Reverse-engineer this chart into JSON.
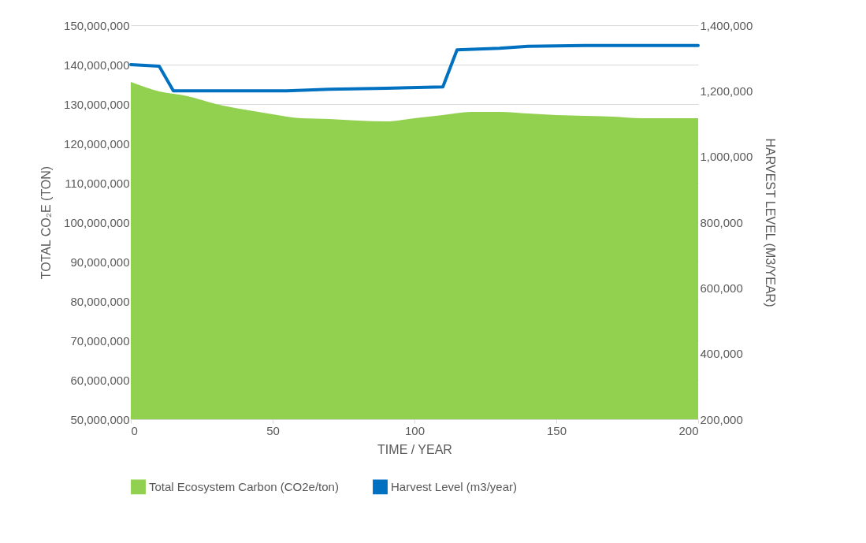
{
  "chart_data": {
    "type": "area",
    "xlabel": "TIME / YEAR",
    "ylabel": "TOTAL CO₂E (TON)",
    "y2label": "HARVEST LEVEL (M3/YEAR)",
    "xlim": [
      0,
      200
    ],
    "xticks": [
      0,
      50,
      100,
      150,
      200
    ],
    "ylim": [
      50000000,
      150000000
    ],
    "yticks": [
      {
        "value": 50000000,
        "label": "50,000,000"
      },
      {
        "value": 60000000,
        "label": "60,000,000"
      },
      {
        "value": 70000000,
        "label": "70,000,000"
      },
      {
        "value": 80000000,
        "label": "80,000,000"
      },
      {
        "value": 90000000,
        "label": "90,000,000"
      },
      {
        "value": 100000000,
        "label": "100,000,000"
      },
      {
        "value": 110000000,
        "label": "110,000,000"
      },
      {
        "value": 120000000,
        "label": "120,000,000"
      },
      {
        "value": 130000000,
        "label": "130,000,000"
      },
      {
        "value": 140000000,
        "label": "140,000,000"
      },
      {
        "value": 150000000,
        "label": "150,000,000"
      }
    ],
    "y2lim": [
      200000,
      1400000
    ],
    "y2ticks": [
      {
        "value": 200000,
        "label": "200,000"
      },
      {
        "value": 400000,
        "label": "400,000"
      },
      {
        "value": 600000,
        "label": "600,000"
      },
      {
        "value": 800000,
        "label": "800,000"
      },
      {
        "value": 1000000,
        "label": "1,000,000"
      },
      {
        "value": 1200000,
        "label": "1,200,000"
      },
      {
        "value": 1400000,
        "label": "1,400,000"
      }
    ],
    "grid": "y",
    "legend": "bottom",
    "series": [
      {
        "name": "Total Ecosystem Carbon (CO2e/ton)",
        "color": "#92d050",
        "x": [
          0,
          10,
          20,
          30,
          40,
          50,
          60,
          70,
          80,
          90,
          100,
          110,
          120,
          130,
          140,
          150,
          160,
          170,
          180,
          190,
          200
        ],
        "values": [
          135600000,
          133200000,
          132000000,
          130000000,
          128600000,
          127400000,
          126400000,
          126200000,
          125800000,
          125600000,
          126400000,
          127200000,
          128000000,
          128000000,
          127600000,
          127200000,
          127000000,
          126800000,
          126400000,
          126400000,
          126400000
        ]
      },
      {
        "name": "Harvest Level (m3/year)",
        "type": "line",
        "axis": "y2",
        "color": "#0070c0",
        "x": [
          0,
          10,
          15,
          55,
          70,
          90,
          110,
          115,
          130,
          140,
          160,
          200
        ],
        "values": [
          1280000,
          1275000,
          1200000,
          1200000,
          1205000,
          1208000,
          1212000,
          1325000,
          1330000,
          1336000,
          1338000,
          1338000
        ]
      }
    ]
  }
}
